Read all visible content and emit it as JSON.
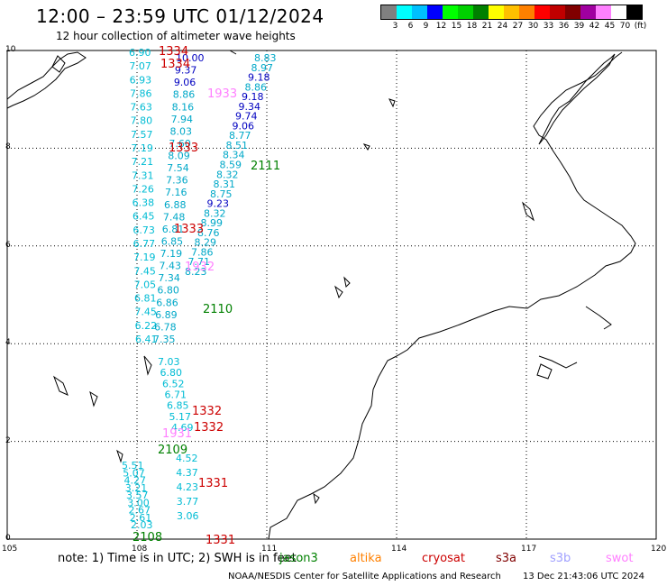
{
  "title": "12:00 – 23:59 UTC 01/12/2024",
  "subtitle": "12 hour collection of altimeter wave heights",
  "legend": {
    "colors": [
      "#808080",
      "#00ffff",
      "#00c0ff",
      "#0000ff",
      "#00ff00",
      "#00d000",
      "#008000",
      "#ffff00",
      "#ffc000",
      "#ff8000",
      "#ff0000",
      "#c00000",
      "#800000",
      "#a000a0",
      "#ff80ff",
      "#ffffff",
      "#000000"
    ],
    "labels": [
      "3",
      "6",
      "9",
      "12",
      "15",
      "18",
      "21",
      "24",
      "27",
      "30",
      "33",
      "36",
      "39",
      "42",
      "45",
      "70",
      "(ft)"
    ]
  },
  "axes": {
    "x_ticks": [
      "105",
      "108",
      "111",
      "114",
      "117",
      "120"
    ],
    "y_ticks": [
      "0",
      "2",
      "4",
      "6",
      "8",
      "10"
    ]
  },
  "tracks": [
    {
      "id": "1334",
      "color": "#cc0000",
      "values": [
        "6.90",
        "7.07",
        "6.93",
        "7.86",
        "7.63",
        "7.80",
        "7.57",
        "7.19",
        "7.21",
        "7.31",
        "7.26",
        "6.38",
        "6.45",
        "6.73",
        "6.77",
        "7.19",
        "7.45",
        "7.05",
        "6.81",
        "7.45",
        "6.22",
        "6.41"
      ]
    },
    {
      "id": "1333",
      "color": "#cc0000",
      "values": [
        "10.00",
        "9.37",
        "9.06",
        "8.86",
        "8.16",
        "7.94",
        "8.03",
        "7.60",
        "8.09",
        "7.54",
        "7.36",
        "7.16",
        "6.88",
        "7.48",
        "6.81",
        "6.85",
        "7.19",
        "7.43",
        "7.34",
        "6.80",
        "6.86",
        "6.89",
        "6.78",
        "7.35"
      ]
    },
    {
      "id": "2111",
      "color": "#008000",
      "values": [
        "8.83",
        "8.97",
        "9.18",
        "8.86",
        "9.18",
        "9.34",
        "9.74",
        "9.06",
        "8.77",
        "8.51",
        "8.34",
        "8.59",
        "8.32",
        "8.31",
        "8.75",
        "9.23",
        "8.32",
        "8.99",
        "8.76",
        "8.29",
        "7.86",
        "7.71",
        "8.23"
      ]
    },
    {
      "id": "1332",
      "color": "#cc0000",
      "values": [
        "7.03",
        "6.80",
        "6.52",
        "6.71",
        "6.85",
        "5.17",
        "4.69"
      ]
    },
    {
      "id": "2110",
      "color": "#008000",
      "values": []
    },
    {
      "id": "1331",
      "color": "#cc0000",
      "values": [
        "4.52",
        "4.37",
        "4.23",
        "3.77",
        "3.06"
      ]
    },
    {
      "id": "2109",
      "color": "#008000",
      "values": [
        "5.51",
        "5.07",
        "4.27",
        "3.21",
        "3.57",
        "3.00",
        "2.67",
        "2.61",
        "2.03"
      ]
    }
  ],
  "track_labels": [
    {
      "text": "1334",
      "color": "#cc0000"
    },
    {
      "text": "1334",
      "color": "#cc0000"
    },
    {
      "text": "1933",
      "color": "#ff80ff"
    },
    {
      "text": "1333",
      "color": "#cc0000"
    },
    {
      "text": "2111",
      "color": "#008000"
    },
    {
      "text": "1333",
      "color": "#cc0000"
    },
    {
      "text": "1932",
      "color": "#ff80ff"
    },
    {
      "text": "2110",
      "color": "#008000"
    },
    {
      "text": "1332",
      "color": "#cc0000"
    },
    {
      "text": "1332",
      "color": "#cc0000"
    },
    {
      "text": "1931",
      "color": "#ff80ff"
    },
    {
      "text": "2109",
      "color": "#008000"
    },
    {
      "text": "1331",
      "color": "#cc0000"
    },
    {
      "text": "2108",
      "color": "#008000"
    },
    {
      "text": "1331",
      "color": "#cc0000"
    }
  ],
  "footer": {
    "note": "note: 1) Time is in UTC; 2) SWH is in feet",
    "satellites": [
      {
        "name": "jason3",
        "color": "#008000"
      },
      {
        "name": "altika",
        "color": "#ff8000"
      },
      {
        "name": "cryosat",
        "color": "#cc0000"
      },
      {
        "name": "s3a",
        "color": "#800000"
      },
      {
        "name": "s3b",
        "color": "#a0a0ff"
      },
      {
        "name": "swot",
        "color": "#ff80ff"
      }
    ],
    "credit": "NOAA/NESDIS Center for Satellite Applications and Research",
    "stamp": "13 Dec 21:43:06 UTC 2024"
  }
}
